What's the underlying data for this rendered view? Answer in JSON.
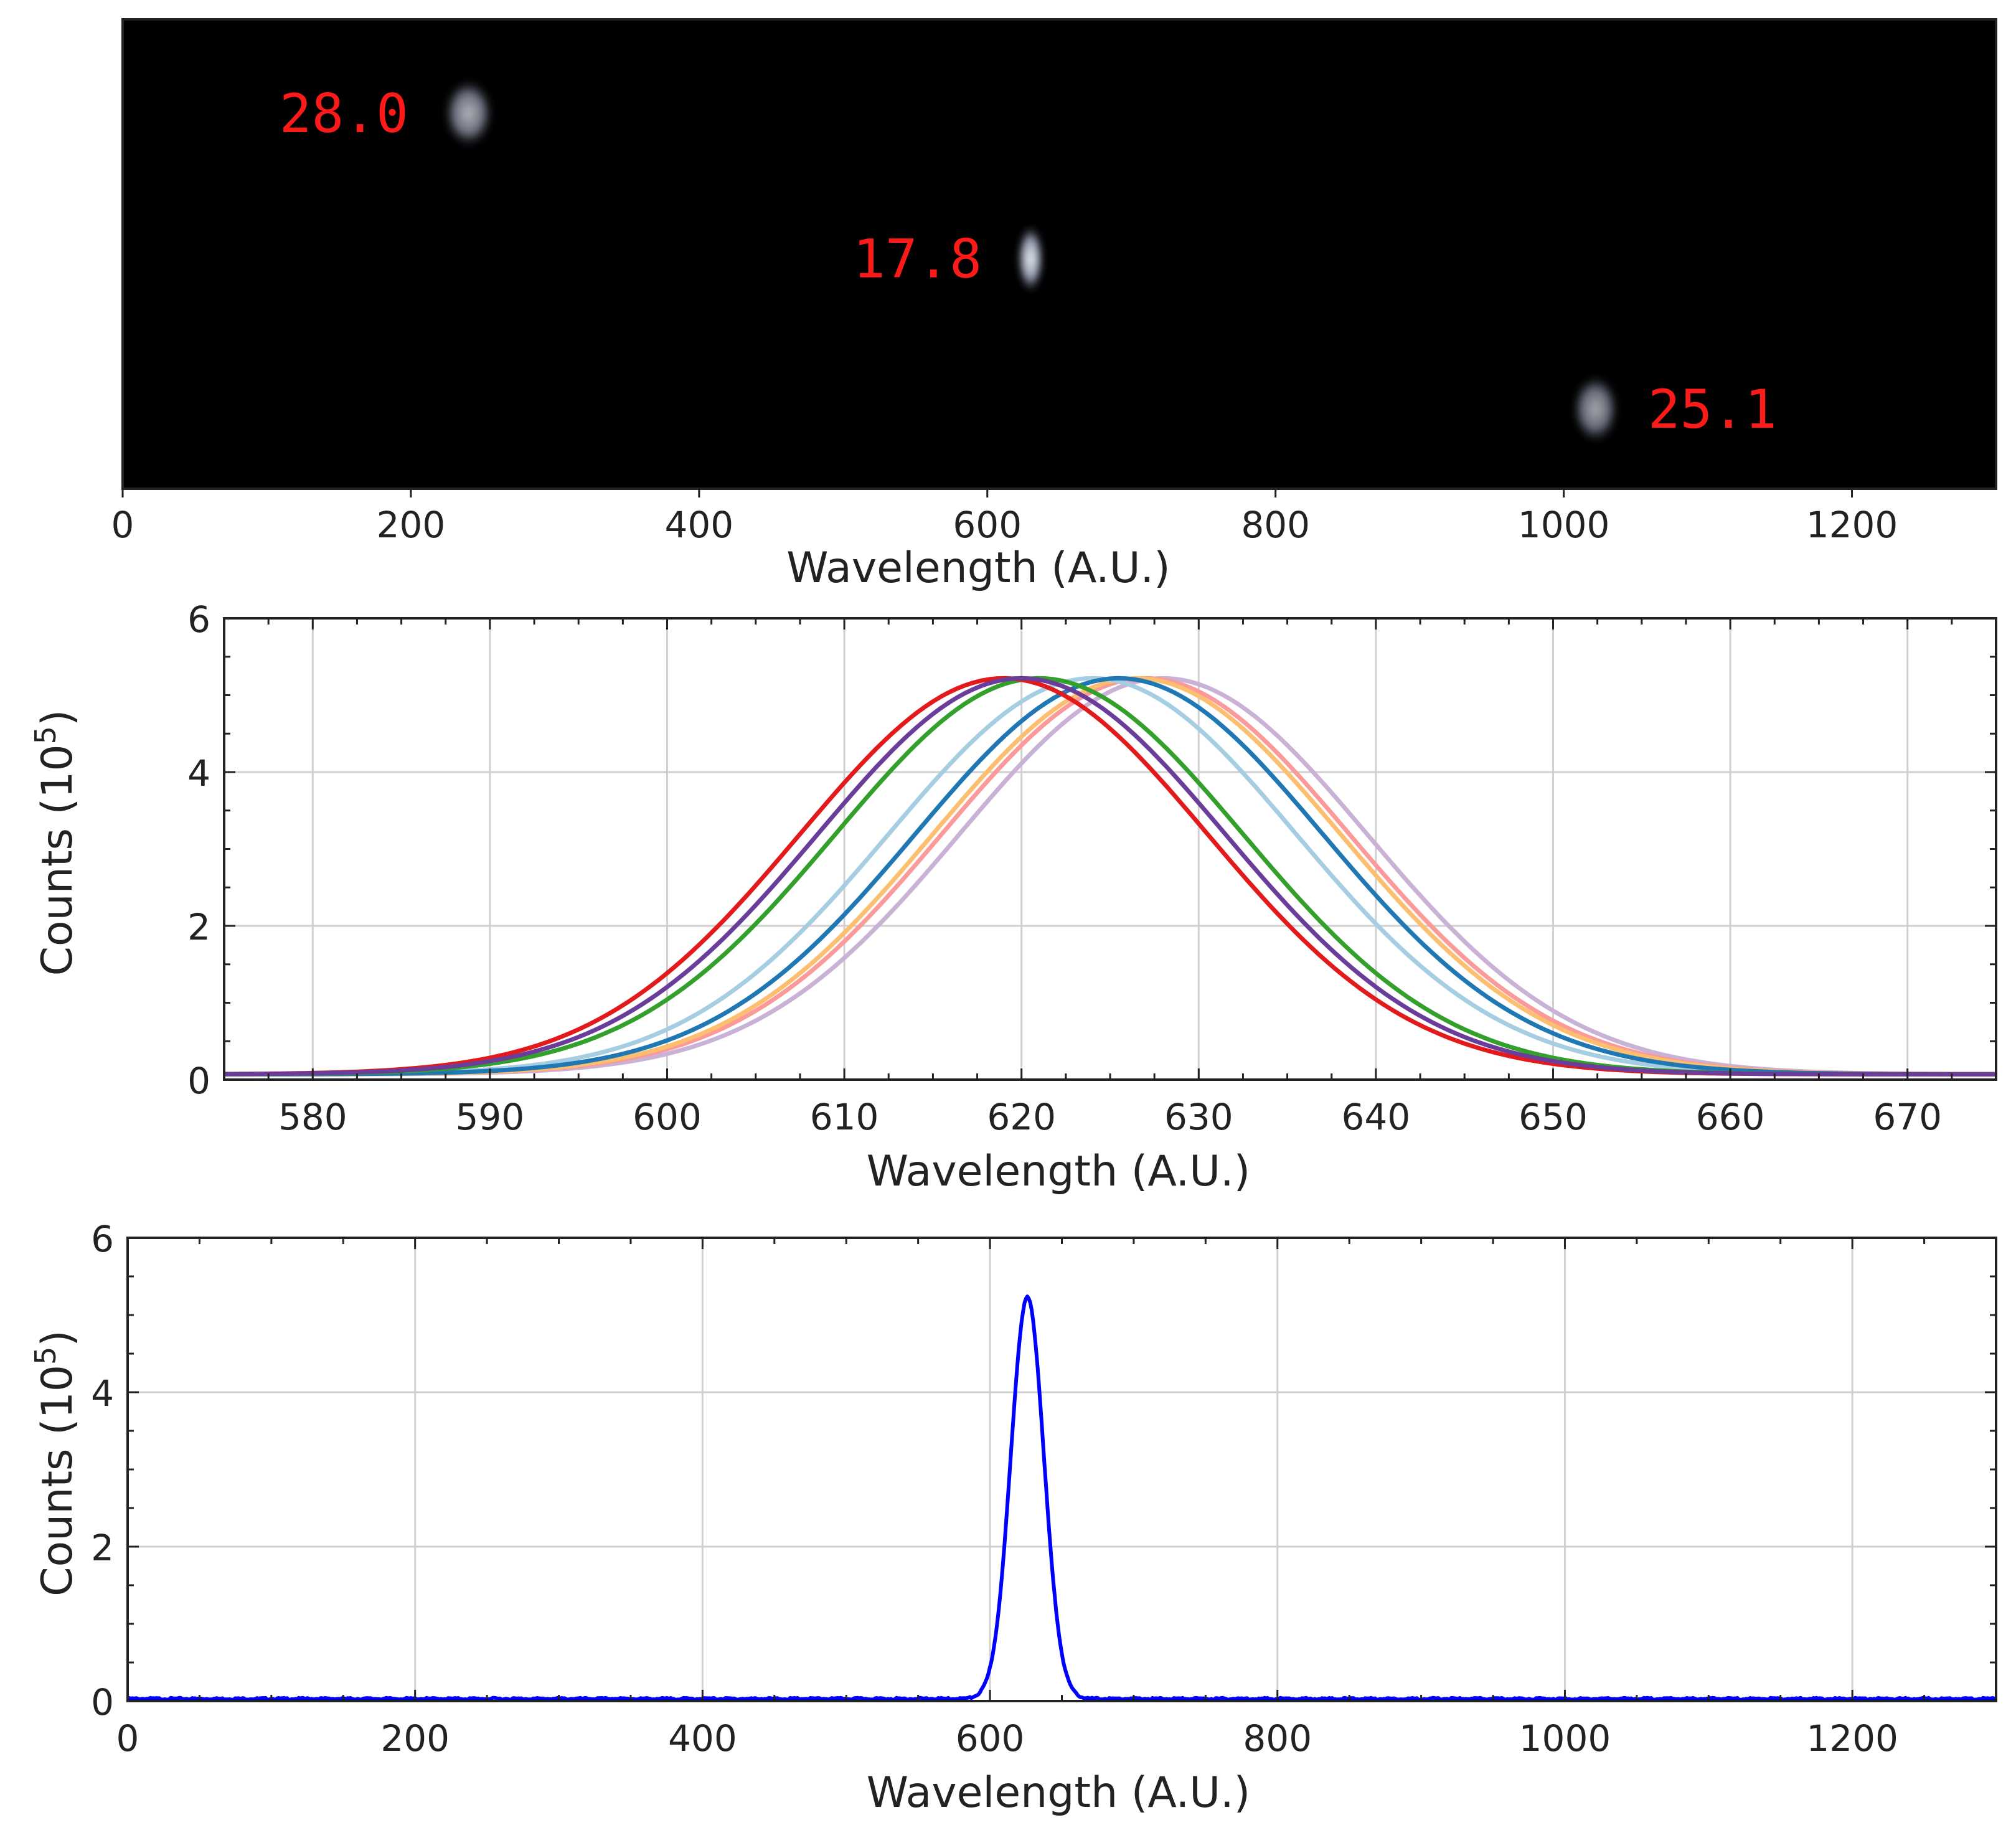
{
  "chart_data": [
    {
      "type": "heatmap",
      "xlabel": "Wavelength (A.U.)",
      "xlim": [
        0,
        1300
      ],
      "xticks": [
        0,
        200,
        400,
        600,
        800,
        1000,
        1200
      ],
      "spots": [
        {
          "x": 240,
          "row": 0.2,
          "label": "28.0",
          "width": 36,
          "height": 0.15,
          "intensity": 0.75,
          "label_side": "left"
        },
        {
          "x": 630,
          "row": 0.51,
          "label": "17.8",
          "width": 20,
          "height": 0.15,
          "intensity": 1.0,
          "label_side": "left"
        },
        {
          "x": 1022,
          "row": 0.83,
          "label": "25.1",
          "width": 34,
          "height": 0.15,
          "intensity": 0.7,
          "label_side": "right"
        }
      ]
    },
    {
      "type": "line",
      "xlabel": "Wavelength (A.U.)",
      "ylabel": "Counts (10^5)",
      "ylabel_base": "Counts (10",
      "ylabel_exp": "5",
      "ylabel_close": ")",
      "xlim": [
        575,
        675
      ],
      "ylim": [
        0,
        6
      ],
      "xticks": [
        580,
        590,
        600,
        610,
        620,
        630,
        640,
        650,
        660,
        670
      ],
      "yticks": [
        0,
        2,
        4,
        6
      ],
      "baseline": 0.07,
      "series": [
        {
          "color": "#c9b2d6",
          "peak": 628.0,
          "amp": 5.15,
          "sigma": 11.5
        },
        {
          "color": "#fb9a99",
          "peak": 627.0,
          "amp": 5.15,
          "sigma": 11.5
        },
        {
          "color": "#fdbf6f",
          "peak": 626.5,
          "amp": 5.15,
          "sigma": 11.5
        },
        {
          "color": "#a6cee3",
          "peak": 624.0,
          "amp": 5.15,
          "sigma": 11.5
        },
        {
          "color": "#1f78b4",
          "peak": 625.5,
          "amp": 5.15,
          "sigma": 11.5
        },
        {
          "color": "#33a02c",
          "peak": 621.0,
          "amp": 5.15,
          "sigma": 11.5
        },
        {
          "color": "#e31a1c",
          "peak": 619.0,
          "amp": 5.15,
          "sigma": 11.5
        },
        {
          "color": "#6a3d9a",
          "peak": 620.0,
          "amp": 5.15,
          "sigma": 11.5
        }
      ]
    },
    {
      "type": "line",
      "xlabel": "Wavelength (A.U.)",
      "ylabel": "Counts (10^5)",
      "ylabel_base": "Counts (10",
      "ylabel_exp": "5",
      "ylabel_close": ")",
      "xlim": [
        0,
        1300
      ],
      "ylim": [
        0,
        6
      ],
      "xticks": [
        0,
        200,
        400,
        600,
        800,
        1000,
        1200
      ],
      "yticks": [
        0,
        2,
        4,
        6
      ],
      "series": [
        {
          "color": "#0000ff",
          "peak": 626,
          "amp": 5.2,
          "sigma": 11.5,
          "baseline": 0.03
        }
      ]
    }
  ]
}
